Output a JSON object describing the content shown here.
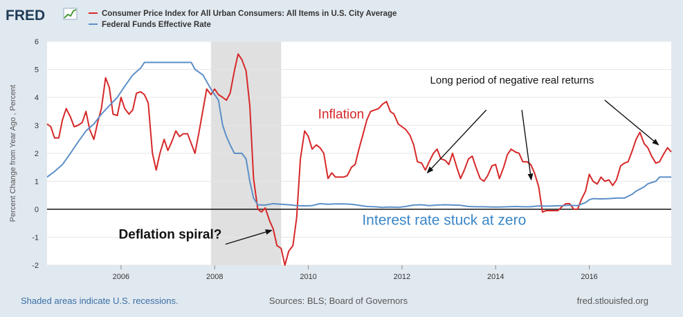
{
  "logo": {
    "text": "FRED"
  },
  "chart_data": {
    "type": "line",
    "title": "",
    "xlabel": "",
    "ylabel": "Percent Change from Year Ago , Percent",
    "xlim": [
      2004.42,
      2017.75
    ],
    "ylim": [
      -2,
      6
    ],
    "yticks": [
      -2,
      -1,
      0,
      1,
      2,
      3,
      4,
      5,
      6
    ],
    "xticks": [
      2006,
      2008,
      2010,
      2012,
      2014,
      2016
    ],
    "grid": true,
    "legend_position": "top-left",
    "recession_shading": [
      2007.92,
      2009.42
    ],
    "series": [
      {
        "name": "Consumer Price Index for All Urban Consumers: All Items in U.S. City Average",
        "color": "#d62728",
        "points": [
          [
            2004.42,
            3.05
          ],
          [
            2004.5,
            2.95
          ],
          [
            2004.58,
            2.55
          ],
          [
            2004.67,
            2.55
          ],
          [
            2004.75,
            3.2
          ],
          [
            2004.83,
            3.6
          ],
          [
            2004.92,
            3.3
          ],
          [
            2005.0,
            2.95
          ],
          [
            2005.08,
            3.0
          ],
          [
            2005.17,
            3.1
          ],
          [
            2005.25,
            3.5
          ],
          [
            2005.33,
            2.85
          ],
          [
            2005.42,
            2.5
          ],
          [
            2005.5,
            3.1
          ],
          [
            2005.58,
            3.6
          ],
          [
            2005.67,
            4.7
          ],
          [
            2005.75,
            4.35
          ],
          [
            2005.83,
            3.4
          ],
          [
            2005.92,
            3.35
          ],
          [
            2006.0,
            4.0
          ],
          [
            2006.08,
            3.6
          ],
          [
            2006.17,
            3.4
          ],
          [
            2006.25,
            3.55
          ],
          [
            2006.33,
            4.15
          ],
          [
            2006.42,
            4.2
          ],
          [
            2006.5,
            4.1
          ],
          [
            2006.58,
            3.8
          ],
          [
            2006.67,
            2.0
          ],
          [
            2006.75,
            1.4
          ],
          [
            2006.83,
            2.0
          ],
          [
            2006.92,
            2.5
          ],
          [
            2007.0,
            2.1
          ],
          [
            2007.08,
            2.4
          ],
          [
            2007.17,
            2.8
          ],
          [
            2007.25,
            2.6
          ],
          [
            2007.33,
            2.7
          ],
          [
            2007.42,
            2.7
          ],
          [
            2007.5,
            2.35
          ],
          [
            2007.58,
            2.0
          ],
          [
            2007.67,
            2.8
          ],
          [
            2007.75,
            3.55
          ],
          [
            2007.83,
            4.3
          ],
          [
            2007.92,
            4.1
          ],
          [
            2008.0,
            4.3
          ],
          [
            2008.08,
            4.1
          ],
          [
            2008.17,
            4.0
          ],
          [
            2008.25,
            3.9
          ],
          [
            2008.33,
            4.15
          ],
          [
            2008.42,
            4.95
          ],
          [
            2008.5,
            5.55
          ],
          [
            2008.58,
            5.35
          ],
          [
            2008.67,
            4.95
          ],
          [
            2008.75,
            3.7
          ],
          [
            2008.83,
            1.1
          ],
          [
            2008.92,
            0.0
          ],
          [
            2009.0,
            -0.1
          ],
          [
            2009.08,
            0.05
          ],
          [
            2009.17,
            -0.4
          ],
          [
            2009.25,
            -0.7
          ],
          [
            2009.33,
            -1.3
          ],
          [
            2009.42,
            -1.4
          ],
          [
            2009.5,
            -2.0
          ],
          [
            2009.58,
            -1.5
          ],
          [
            2009.67,
            -1.3
          ],
          [
            2009.75,
            -0.3
          ],
          [
            2009.83,
            1.8
          ],
          [
            2009.92,
            2.8
          ],
          [
            2010.0,
            2.6
          ],
          [
            2010.08,
            2.15
          ],
          [
            2010.17,
            2.3
          ],
          [
            2010.25,
            2.2
          ],
          [
            2010.33,
            2.0
          ],
          [
            2010.42,
            1.1
          ],
          [
            2010.5,
            1.3
          ],
          [
            2010.58,
            1.15
          ],
          [
            2010.67,
            1.15
          ],
          [
            2010.75,
            1.15
          ],
          [
            2010.83,
            1.2
          ],
          [
            2010.92,
            1.5
          ],
          [
            2011.0,
            1.6
          ],
          [
            2011.08,
            2.15
          ],
          [
            2011.17,
            2.7
          ],
          [
            2011.25,
            3.2
          ],
          [
            2011.33,
            3.5
          ],
          [
            2011.42,
            3.55
          ],
          [
            2011.5,
            3.6
          ],
          [
            2011.58,
            3.75
          ],
          [
            2011.67,
            3.85
          ],
          [
            2011.75,
            3.5
          ],
          [
            2011.83,
            3.4
          ],
          [
            2011.92,
            3.05
          ],
          [
            2012.0,
            2.95
          ],
          [
            2012.08,
            2.85
          ],
          [
            2012.17,
            2.65
          ],
          [
            2012.25,
            2.3
          ],
          [
            2012.33,
            1.7
          ],
          [
            2012.42,
            1.65
          ],
          [
            2012.5,
            1.4
          ],
          [
            2012.58,
            1.7
          ],
          [
            2012.67,
            2.0
          ],
          [
            2012.75,
            2.15
          ],
          [
            2012.83,
            1.8
          ],
          [
            2012.92,
            1.75
          ],
          [
            2013.0,
            1.6
          ],
          [
            2013.08,
            2.0
          ],
          [
            2013.17,
            1.5
          ],
          [
            2013.25,
            1.1
          ],
          [
            2013.33,
            1.4
          ],
          [
            2013.42,
            1.8
          ],
          [
            2013.5,
            1.9
          ],
          [
            2013.58,
            1.5
          ],
          [
            2013.67,
            1.1
          ],
          [
            2013.75,
            1.0
          ],
          [
            2013.83,
            1.2
          ],
          [
            2013.92,
            1.55
          ],
          [
            2014.0,
            1.6
          ],
          [
            2014.08,
            1.1
          ],
          [
            2014.17,
            1.5
          ],
          [
            2014.25,
            1.95
          ],
          [
            2014.33,
            2.15
          ],
          [
            2014.42,
            2.05
          ],
          [
            2014.5,
            2.0
          ],
          [
            2014.58,
            1.7
          ],
          [
            2014.67,
            1.7
          ],
          [
            2014.75,
            1.6
          ],
          [
            2014.83,
            1.3
          ],
          [
            2014.92,
            0.8
          ],
          [
            2015.0,
            -0.1
          ],
          [
            2015.08,
            -0.05
          ],
          [
            2015.17,
            -0.05
          ],
          [
            2015.25,
            -0.05
          ],
          [
            2015.33,
            -0.05
          ],
          [
            2015.42,
            0.1
          ],
          [
            2015.5,
            0.2
          ],
          [
            2015.58,
            0.2
          ],
          [
            2015.67,
            0.0
          ],
          [
            2015.75,
            0.0
          ],
          [
            2015.83,
            0.35
          ],
          [
            2015.92,
            0.65
          ],
          [
            2016.0,
            1.25
          ],
          [
            2016.08,
            1.0
          ],
          [
            2016.17,
            0.9
          ],
          [
            2016.25,
            1.15
          ],
          [
            2016.33,
            1.0
          ],
          [
            2016.42,
            1.05
          ],
          [
            2016.5,
            0.85
          ],
          [
            2016.58,
            1.05
          ],
          [
            2016.67,
            1.55
          ],
          [
            2016.75,
            1.65
          ],
          [
            2016.83,
            1.7
          ],
          [
            2016.92,
            2.1
          ],
          [
            2017.0,
            2.5
          ],
          [
            2017.08,
            2.75
          ],
          [
            2017.17,
            2.35
          ],
          [
            2017.25,
            2.2
          ],
          [
            2017.33,
            1.9
          ],
          [
            2017.42,
            1.65
          ],
          [
            2017.5,
            1.7
          ],
          [
            2017.58,
            1.95
          ],
          [
            2017.67,
            2.2
          ],
          [
            2017.75,
            2.05
          ]
        ]
      },
      {
        "name": "Federal Funds Effective Rate",
        "color": "#5b8fc7",
        "points": [
          [
            2004.42,
            1.15
          ],
          [
            2004.58,
            1.35
          ],
          [
            2004.75,
            1.6
          ],
          [
            2004.92,
            2.0
          ],
          [
            2005.08,
            2.4
          ],
          [
            2005.25,
            2.8
          ],
          [
            2005.42,
            3.05
          ],
          [
            2005.58,
            3.4
          ],
          [
            2005.75,
            3.7
          ],
          [
            2005.92,
            4.0
          ],
          [
            2006.08,
            4.4
          ],
          [
            2006.25,
            4.8
          ],
          [
            2006.42,
            5.05
          ],
          [
            2006.5,
            5.25
          ],
          [
            2006.67,
            5.25
          ],
          [
            2006.83,
            5.25
          ],
          [
            2007.0,
            5.25
          ],
          [
            2007.17,
            5.25
          ],
          [
            2007.33,
            5.25
          ],
          [
            2007.5,
            5.25
          ],
          [
            2007.58,
            5.0
          ],
          [
            2007.75,
            4.8
          ],
          [
            2007.92,
            4.3
          ],
          [
            2008.08,
            3.9
          ],
          [
            2008.17,
            3.0
          ],
          [
            2008.25,
            2.6
          ],
          [
            2008.33,
            2.3
          ],
          [
            2008.42,
            2.0
          ],
          [
            2008.5,
            2.0
          ],
          [
            2008.58,
            2.0
          ],
          [
            2008.67,
            1.8
          ],
          [
            2008.75,
            1.0
          ],
          [
            2008.83,
            0.4
          ],
          [
            2008.92,
            0.16
          ],
          [
            2009.08,
            0.15
          ],
          [
            2009.25,
            0.2
          ],
          [
            2009.42,
            0.18
          ],
          [
            2009.58,
            0.16
          ],
          [
            2009.75,
            0.13
          ],
          [
            2009.92,
            0.12
          ],
          [
            2010.08,
            0.13
          ],
          [
            2010.25,
            0.2
          ],
          [
            2010.42,
            0.18
          ],
          [
            2010.58,
            0.19
          ],
          [
            2010.75,
            0.19
          ],
          [
            2010.92,
            0.18
          ],
          [
            2011.08,
            0.14
          ],
          [
            2011.25,
            0.1
          ],
          [
            2011.42,
            0.09
          ],
          [
            2011.58,
            0.07
          ],
          [
            2011.75,
            0.08
          ],
          [
            2011.92,
            0.07
          ],
          [
            2012.08,
            0.1
          ],
          [
            2012.25,
            0.15
          ],
          [
            2012.42,
            0.16
          ],
          [
            2012.58,
            0.13
          ],
          [
            2012.75,
            0.15
          ],
          [
            2012.92,
            0.16
          ],
          [
            2013.08,
            0.15
          ],
          [
            2013.25,
            0.14
          ],
          [
            2013.42,
            0.1
          ],
          [
            2013.58,
            0.09
          ],
          [
            2013.75,
            0.09
          ],
          [
            2013.92,
            0.08
          ],
          [
            2014.08,
            0.08
          ],
          [
            2014.25,
            0.09
          ],
          [
            2014.42,
            0.1
          ],
          [
            2014.58,
            0.09
          ],
          [
            2014.75,
            0.09
          ],
          [
            2014.92,
            0.12
          ],
          [
            2015.08,
            0.11
          ],
          [
            2015.25,
            0.12
          ],
          [
            2015.42,
            0.13
          ],
          [
            2015.58,
            0.14
          ],
          [
            2015.75,
            0.13
          ],
          [
            2015.92,
            0.24
          ],
          [
            2016.0,
            0.34
          ],
          [
            2016.08,
            0.38
          ],
          [
            2016.25,
            0.37
          ],
          [
            2016.42,
            0.38
          ],
          [
            2016.58,
            0.4
          ],
          [
            2016.75,
            0.4
          ],
          [
            2016.92,
            0.54
          ],
          [
            2017.0,
            0.65
          ],
          [
            2017.17,
            0.8
          ],
          [
            2017.25,
            0.91
          ],
          [
            2017.42,
            1.0
          ],
          [
            2017.5,
            1.15
          ],
          [
            2017.67,
            1.15
          ],
          [
            2017.75,
            1.15
          ]
        ]
      }
    ],
    "annotations": [
      {
        "text": "Inflation",
        "color": "#d62728",
        "x": 2010.7,
        "y": 3.25
      },
      {
        "text": "Long period of negative real returns",
        "color": "#111111",
        "x": 2014.35,
        "y": 4.5
      },
      {
        "text": "Interest rate stuck at zero",
        "color": "#3a86c8",
        "x": 2012.9,
        "y": -0.55
      },
      {
        "text": "Deflation spiral?",
        "color": "#111111",
        "x": 2007.05,
        "y": -1.05
      }
    ],
    "arrows": [
      {
        "from": [
          2013.8,
          3.55
        ],
        "to": [
          2012.54,
          1.3
        ]
      },
      {
        "from": [
          2014.56,
          3.55
        ],
        "to": [
          2014.76,
          1.05
        ]
      },
      {
        "from": [
          2016.33,
          3.9
        ],
        "to": [
          2017.48,
          2.3
        ]
      },
      {
        "from": [
          2008.23,
          -1.25
        ],
        "to": [
          2009.22,
          -0.75
        ]
      }
    ]
  },
  "footer": {
    "left": "Shaded areas indicate U.S. recessions.",
    "center": "Sources: BLS; Board of Governors",
    "right": "fred.stlouisfed.org"
  },
  "colors": {
    "background": "#e1e9f0",
    "plot_background": "#ffffff",
    "recession": "#e0e0e0",
    "footer_link": "#3a6ea5",
    "footer_text": "#555555"
  }
}
